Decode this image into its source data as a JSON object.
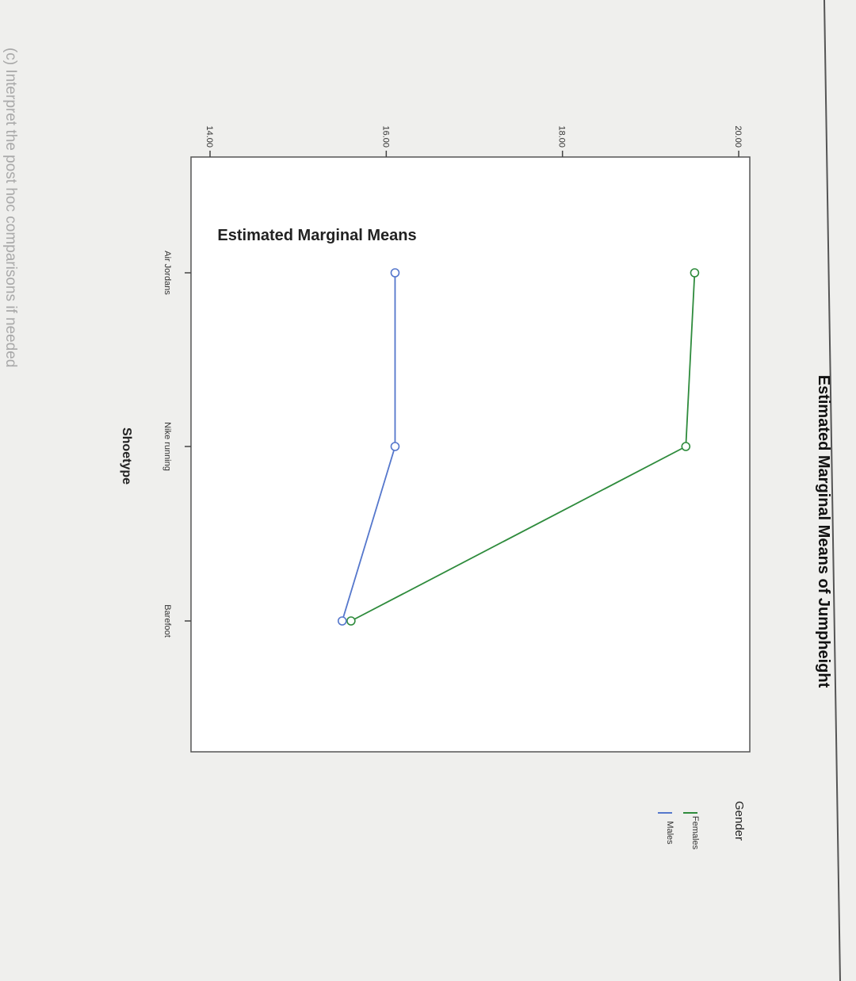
{
  "page": {
    "prompt": "(c) Interpret the post hoc comparisons if needed"
  },
  "chart_data": {
    "type": "line",
    "title": "Estimated Marginal Means of Jumpheight",
    "xlabel": "Shoetype",
    "ylabel": "Estimated Marginal Means",
    "categories": [
      "Air Jordans",
      "Nike running",
      "Barefoot"
    ],
    "y_ticks": [
      "14.00",
      "16.00",
      "18.00",
      "20.00"
    ],
    "ylim": [
      14.0,
      20.0
    ],
    "legend": {
      "title": "Gender",
      "placement": "right"
    },
    "series": [
      {
        "name": "Females",
        "values": [
          19.5,
          19.4,
          15.6
        ],
        "color": "#2e8b3c"
      },
      {
        "name": "Males",
        "values": [
          16.1,
          16.1,
          15.5
        ],
        "color": "#5577cc"
      }
    ],
    "rotation": "90deg clockwise"
  }
}
